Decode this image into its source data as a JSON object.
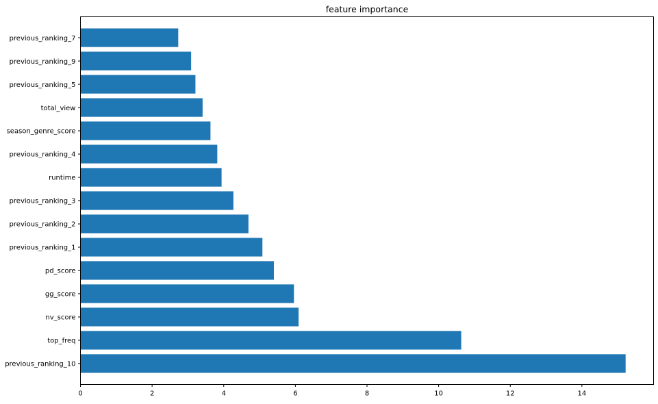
{
  "chart_data": {
    "type": "bar",
    "orientation": "horizontal",
    "title": "feature importance",
    "xlabel": "",
    "ylabel": "",
    "categories": [
      "previous_ranking_10",
      "top_freq",
      "nv_score",
      "gg_score",
      "pd_score",
      "previous_ranking_1",
      "previous_ranking_2",
      "previous_ranking_3",
      "runtime",
      "previous_ranking_4",
      "season_genre_score",
      "total_view",
      "previous_ranking_5",
      "previous_ranking_9",
      "previous_ranking_7"
    ],
    "values": [
      15.22,
      10.63,
      6.09,
      5.96,
      5.4,
      5.08,
      4.69,
      4.27,
      3.94,
      3.82,
      3.63,
      3.41,
      3.21,
      3.09,
      2.73
    ],
    "xlim": [
      0,
      16.0
    ],
    "xticks": [
      0,
      2,
      4,
      6,
      8,
      10,
      12,
      14
    ],
    "grid": false,
    "legend": "none",
    "bar_color": "#1f77b4"
  }
}
